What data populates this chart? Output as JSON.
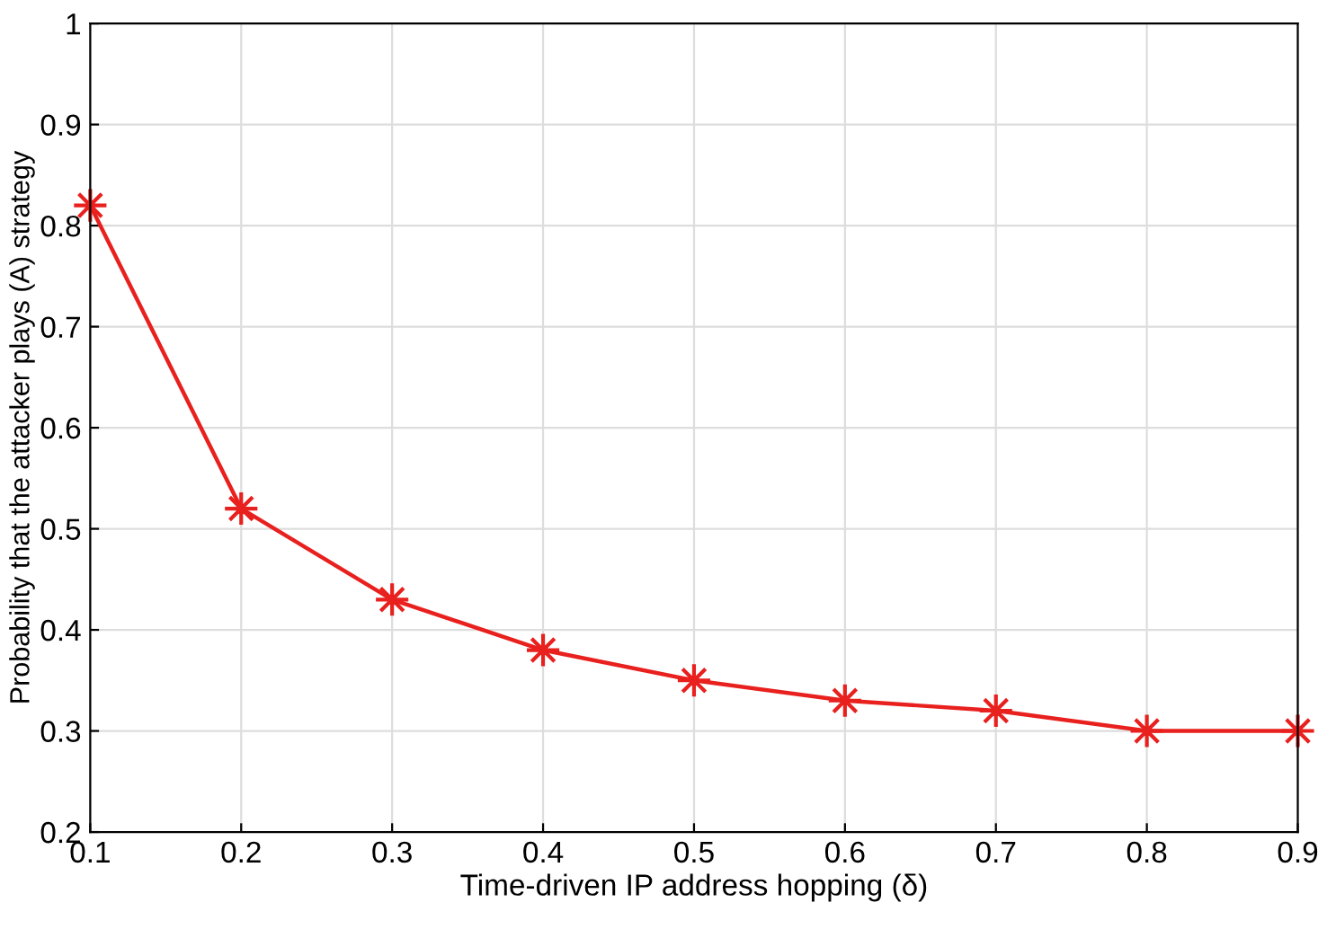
{
  "chart_data": {
    "type": "line",
    "xlabel": "Time-driven IP address hopping (δ)",
    "ylabel": "Probability that the attacker plays (A) strategy",
    "x": [
      0.1,
      0.2,
      0.3,
      0.4,
      0.5,
      0.6,
      0.7,
      0.8,
      0.9
    ],
    "series": [
      {
        "color": "#e8201e",
        "values": [
          0.82,
          0.52,
          0.43,
          0.38,
          0.35,
          0.33,
          0.32,
          0.3,
          0.3
        ]
      }
    ],
    "xlim": [
      0.1,
      0.9
    ],
    "xticks": [
      0.1,
      0.2,
      0.3,
      0.4,
      0.5,
      0.6,
      0.7,
      0.8,
      0.9
    ],
    "ylim": [
      0.2,
      1
    ],
    "yticks": [
      0.2,
      0.3,
      0.4,
      0.5,
      0.6,
      0.7,
      0.8,
      0.9,
      1
    ],
    "grid": true,
    "marker": "cross",
    "line_style": "solid"
  }
}
